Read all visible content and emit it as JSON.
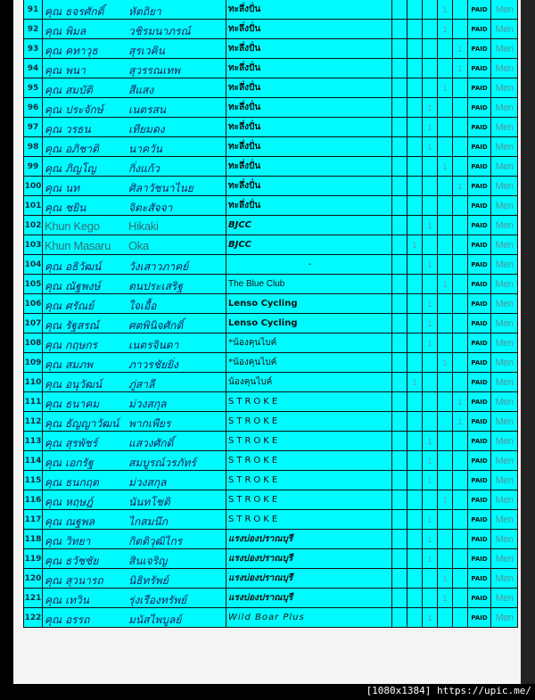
{
  "colors": {
    "row_bg": "#00fbff",
    "page_bg": "#000000"
  },
  "rows": [
    {
      "num": "91",
      "first": "คุณ ธจรศักดิ์",
      "last": "หัตถิยา",
      "team": "ทะลึ่งปั่น",
      "style": "thai",
      "mark": 3,
      "paid": "PAID",
      "cat": "Men"
    },
    {
      "num": "92",
      "first": "คุณ พิมล",
      "last": "วชิรมนาภรณ์",
      "team": "ทะลึ่งปั่น",
      "style": "thai",
      "mark": 3,
      "paid": "PAID",
      "cat": "Men"
    },
    {
      "num": "93",
      "first": "คุณ คทาวุธ",
      "last": "สุรเวคิน",
      "team": "ทะลึ่งปั่น",
      "style": "thai",
      "mark": 4,
      "paid": "PAID",
      "cat": "Men"
    },
    {
      "num": "94",
      "first": "คุณ พนา",
      "last": "สุวรรณเทพ",
      "team": "ทะลึ่งปั่น",
      "style": "thai",
      "mark": 4,
      "paid": "PAID",
      "cat": "Men"
    },
    {
      "num": "95",
      "first": "คุณ สมบัติ",
      "last": "สีแสง",
      "team": "ทะลึ่งปั่น",
      "style": "thai",
      "mark": 3,
      "paid": "PAID",
      "cat": "Men"
    },
    {
      "num": "96",
      "first": "คุณ ประจักษ์",
      "last": "เนตรสน",
      "team": "ทะลึ่งปั่น",
      "style": "thai",
      "mark": 2,
      "paid": "PAID",
      "cat": "Men"
    },
    {
      "num": "97",
      "first": "คุณ วรธน",
      "last": "เทียมดง",
      "team": "ทะลึ่งปั่น",
      "style": "thai",
      "mark": 2,
      "paid": "PAID",
      "cat": "Men"
    },
    {
      "num": "98",
      "first": "คุณ อภิชาติ",
      "last": "นาควัน",
      "team": "ทะลึ่งปั่น",
      "style": "thai",
      "mark": 2,
      "paid": "PAID",
      "cat": "Men"
    },
    {
      "num": "99",
      "first": "คุณ ภิญโญ",
      "last": "กิ่งแก้ว",
      "team": "ทะลึ่งปั่น",
      "style": "thai",
      "mark": 3,
      "paid": "PAID",
      "cat": "Men"
    },
    {
      "num": "100",
      "first": "คุณ นท",
      "last": "ศิลาวัชนาไนย",
      "team": "ทะลึ่งปั่น",
      "style": "thai",
      "mark": 4,
      "paid": "PAID",
      "cat": "Men"
    },
    {
      "num": "101",
      "first": "คุณ ชยิน",
      "last": "จิตะสัจจา",
      "team": "ทะลึ่งปั่น",
      "style": "thai",
      "mark": -1,
      "paid": "PAID",
      "cat": "Men"
    },
    {
      "num": "102",
      "first": "Khun Kego",
      "last": "Hikaki",
      "team": "BJCC",
      "style": "bjcc",
      "mark": 2,
      "paid": "PAID",
      "cat": "Men",
      "latin": true
    },
    {
      "num": "103",
      "first": "Khun Masaru",
      "last": "Oka",
      "team": "BJCC",
      "style": "bjcc",
      "mark": 1,
      "paid": "PAID",
      "cat": "Men",
      "latin": true
    },
    {
      "num": "104",
      "first": "คุณ อธิวัฒน์",
      "last": "วังเสาวภาคย์",
      "team": "-",
      "style": "dash",
      "mark": 2,
      "paid": "PAID",
      "cat": "Men"
    },
    {
      "num": "105",
      "first": "คุณ ณัฐพงษ์",
      "last": "ตนประเสริฐ",
      "team": "The Blue Club",
      "style": "blue",
      "mark": 3,
      "paid": "PAID",
      "cat": "Men"
    },
    {
      "num": "106",
      "first": "คุณ ศรัณย์",
      "last": "ใจเอื้อ",
      "team": "Lenso Cycling",
      "style": "lenso",
      "mark": 2,
      "paid": "PAID",
      "cat": "Men"
    },
    {
      "num": "107",
      "first": "คุณ รัฐสรณ์",
      "last": "ศตพินิจศักดิ์",
      "team": "Lenso Cycling",
      "style": "lenso",
      "mark": 2,
      "paid": "PAID",
      "cat": "Men"
    },
    {
      "num": "108",
      "first": "คุณ กฤษกร",
      "last": "เนตรจินดา",
      "team": "*น้องคุนไบค์",
      "style": "bike",
      "mark": 2,
      "paid": "PAID",
      "cat": "Men"
    },
    {
      "num": "109",
      "first": "คุณ สมภพ",
      "last": "ภาวรชัยยิ่ง",
      "team": "*น้องคุนไบค์",
      "style": "bike",
      "mark": 3,
      "paid": "PAID",
      "cat": "Men"
    },
    {
      "num": "110",
      "first": "คุณ อนุวัฒน์",
      "last": "ภู่สาลี",
      "team": "น้องคุนไบค์",
      "style": "bike",
      "mark": 1,
      "paid": "PAID",
      "cat": "Men"
    },
    {
      "num": "111",
      "first": "คุณ ธนาคม",
      "last": "ม่วงสกุล",
      "team": "STROKE",
      "style": "stroke",
      "mark": 4,
      "paid": "PAID",
      "cat": "Men"
    },
    {
      "num": "112",
      "first": "คุณ ธัญญาวัฒน์",
      "last": "พากเพียร",
      "team": "STROKE",
      "style": "stroke",
      "mark": 4,
      "paid": "PAID",
      "cat": "Men"
    },
    {
      "num": "113",
      "first": "คุณ สุรพัชร์",
      "last": "แสวงศักดิ์",
      "team": "STROKE",
      "style": "stroke",
      "mark": 2,
      "paid": "PAID",
      "cat": "Men"
    },
    {
      "num": "114",
      "first": "คุณ เอกรัฐ",
      "last": "สมบูรณ์วรภัทร์",
      "team": "STROKE",
      "style": "stroke",
      "mark": 2,
      "paid": "PAID",
      "cat": "Men"
    },
    {
      "num": "115",
      "first": "คุณ ธนกฤต",
      "last": "ม่วงสกุล",
      "team": "STROKE",
      "style": "stroke",
      "mark": 2,
      "paid": "PAID",
      "cat": "Men"
    },
    {
      "num": "116",
      "first": "คุณ หฤษฎ์",
      "last": "นันทโชติ",
      "team": "STROKE",
      "style": "stroke",
      "mark": 3,
      "paid": "PAID",
      "cat": "Men"
    },
    {
      "num": "117",
      "first": "คุณ ณฐพล",
      "last": "ไกสมนึก",
      "team": "STROKE",
      "style": "stroke",
      "mark": 2,
      "paid": "PAID",
      "cat": "Men"
    },
    {
      "num": "118",
      "first": "คุณ วิทยา",
      "last": "กิตติวุฒิไกร",
      "team": "แรงบ่องปราณบุรี",
      "style": "rang",
      "mark": 2,
      "paid": "PAID",
      "cat": "Men"
    },
    {
      "num": "119",
      "first": "คุณ ธวัชชัย",
      "last": "สินเจริญ",
      "team": "แรงบ่องปราณบุรี",
      "style": "rang",
      "mark": 2,
      "paid": "PAID",
      "cat": "Men"
    },
    {
      "num": "120",
      "first": "คุณ สุวนารถ",
      "last": "นิธิทรัพย์",
      "team": "แรงบ่องปราณบุรี",
      "style": "rang",
      "mark": 3,
      "paid": "PAID",
      "cat": "Men"
    },
    {
      "num": "121",
      "first": "คุณ เทวิน",
      "last": "รุ่งเรืองทรัพย์",
      "team": "แรงบ่องปราณบุรี",
      "style": "rang",
      "mark": 3,
      "paid": "PAID",
      "cat": "Men"
    },
    {
      "num": "122",
      "first": "คุณ อรรถ",
      "last": "มนัสไพบูลย์",
      "team": "Wild Boar Plus",
      "style": "wild",
      "mark": 2,
      "paid": "PAID",
      "cat": "Men"
    }
  ],
  "mark_value": "1",
  "footer": "[1080x1384] https://upic.me/"
}
